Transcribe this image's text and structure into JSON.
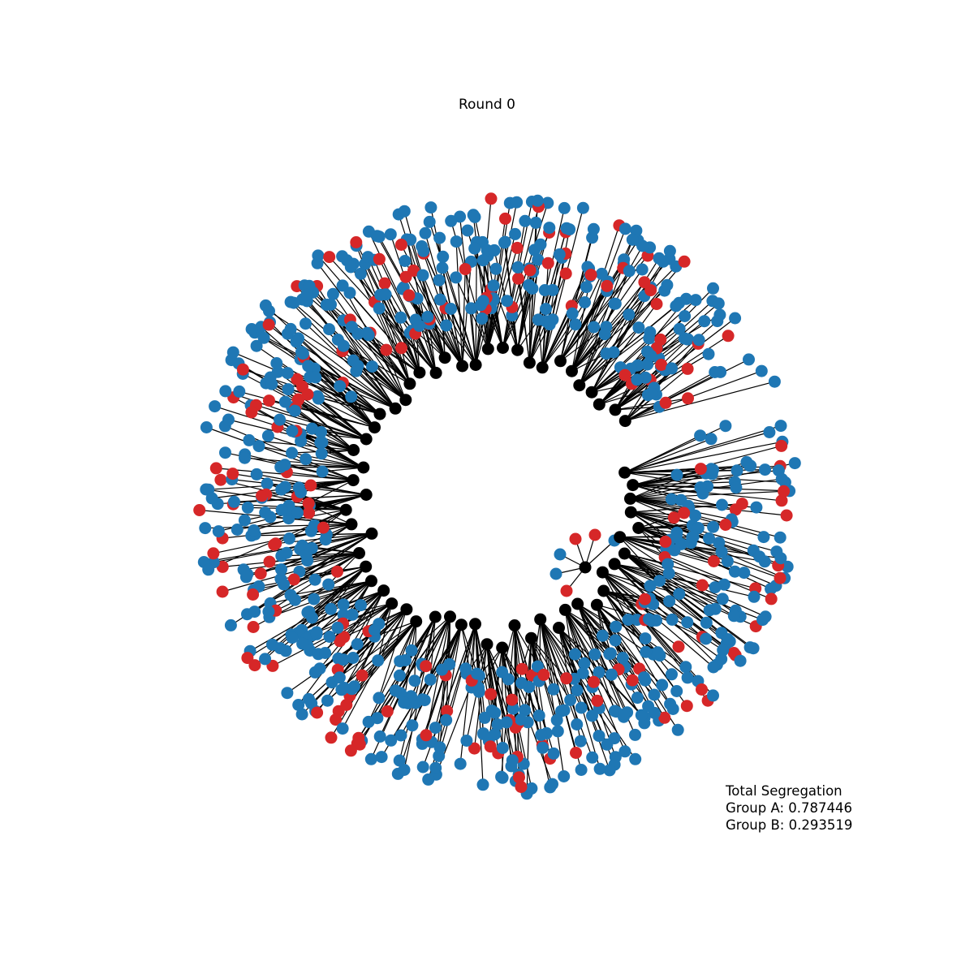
{
  "title": "Round 0",
  "stats": {
    "heading": "Total Segregation",
    "group_a": "Group A: 0.787446",
    "group_b": "Group B: 0.293519"
  },
  "colors": {
    "hub": "#000000",
    "group_a": "#1f77b4",
    "group_b": "#d62728",
    "edge": "#000000",
    "background": "#ffffff"
  },
  "network": {
    "layout": "radial-tree",
    "hub_count": 60,
    "leaves_per_hub": 14,
    "group_b_share": 0.2,
    "open_gap": "right"
  }
}
